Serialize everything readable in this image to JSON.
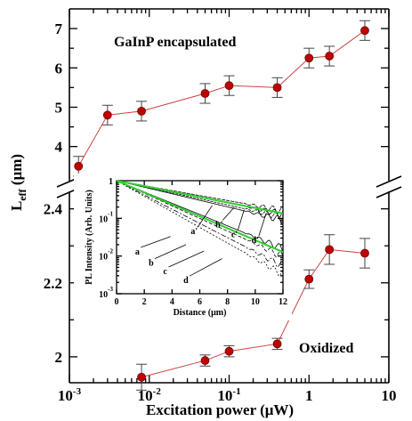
{
  "chart_data": [
    {
      "type": "scatter",
      "title": "",
      "xlabel": "Excitation power (μW)",
      "ylabel": "L_eff (μm)",
      "xscale": "log",
      "xlim": [
        0.001,
        10
      ],
      "x_tick_labels": [
        "10^-3",
        "10^-2",
        "10^-1",
        "1",
        "10"
      ],
      "broken_y_axis": true,
      "grid": false,
      "upper_panel": {
        "label": "GaInP encapsulated",
        "ylim": [
          3.2,
          7.5
        ],
        "y_ticks": [
          "4",
          "5",
          "6",
          "7"
        ],
        "series": [
          {
            "x": [
              0.0013,
              0.003,
              0.008,
              0.05,
              0.1,
              0.4,
              1.0,
              1.8,
              5.0
            ],
            "y": [
              3.5,
              4.8,
              4.9,
              5.35,
              5.55,
              5.5,
              6.25,
              6.3,
              6.95
            ],
            "yerr": [
              0.25,
              0.25,
              0.25,
              0.25,
              0.25,
              0.25,
              0.25,
              0.25,
              0.25
            ]
          }
        ]
      },
      "lower_panel": {
        "label": "Oxidized",
        "ylim": [
          1.93,
          2.44
        ],
        "y_ticks": [
          "2",
          "2.2",
          "2.4"
        ],
        "series": [
          {
            "x": [
              0.008,
              0.05,
              0.1,
              0.4,
              1.0,
              1.8,
              5.0
            ],
            "y": [
              1.945,
              1.99,
              2.015,
              2.035,
              2.21,
              2.29,
              2.28
            ],
            "yerr": [
              0.035,
              0.015,
              0.015,
              0.015,
              0.025,
              0.04,
              0.04
            ]
          }
        ]
      },
      "marker_color": "#c00000",
      "line_color": "#d04040"
    },
    {
      "type": "line",
      "title": "",
      "xlabel": "Distance (μm)",
      "ylabel": "PL Intensity (Arb. Units)",
      "yscale": "log",
      "xlim": [
        0,
        12
      ],
      "ylim": [
        0.001,
        1
      ],
      "x_ticks": [
        "0",
        "2",
        "4",
        "6",
        "8",
        "10",
        "12"
      ],
      "y_tick_labels": [
        "10^-3",
        "10^-2",
        "10^-1",
        "1"
      ],
      "annotations": [
        "a",
        "b",
        "c",
        "d",
        "a'",
        "b'",
        "c'",
        "d'"
      ],
      "fit_color": "#2fd02f",
      "series": [
        {
          "name": "a",
          "decay_length": 2.1
        },
        {
          "name": "b",
          "decay_length": 2.3
        },
        {
          "name": "c",
          "decay_length": 2.6
        },
        {
          "name": "d",
          "decay_length": 2.9
        },
        {
          "name": "a'",
          "decay_length": 5.0
        },
        {
          "name": "b'",
          "decay_length": 5.4
        },
        {
          "name": "c'",
          "decay_length": 5.9
        },
        {
          "name": "d'",
          "decay_length": 6.6
        }
      ]
    }
  ]
}
